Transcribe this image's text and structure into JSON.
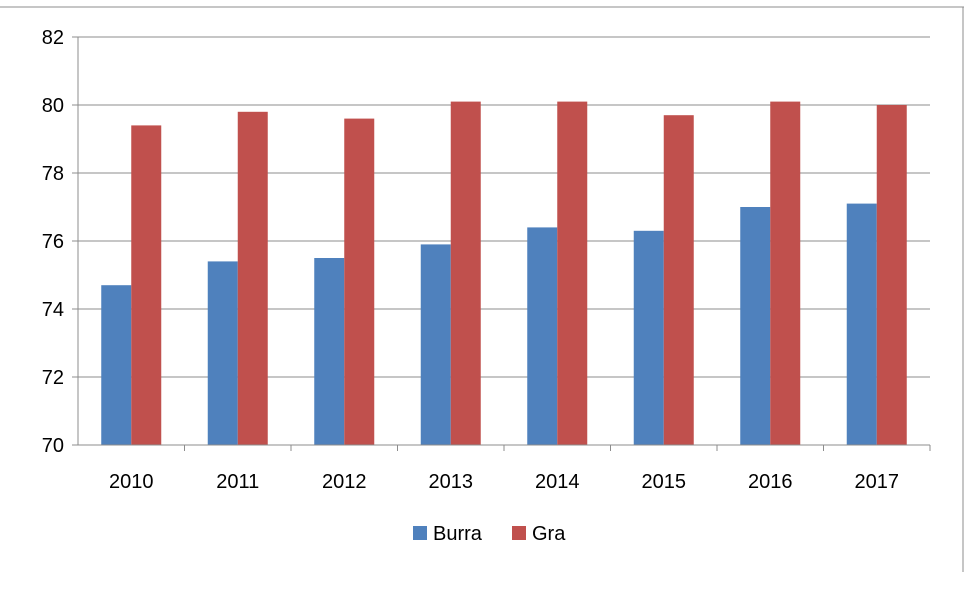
{
  "chart_data": {
    "type": "bar",
    "title": "",
    "xlabel": "",
    "ylabel": "",
    "categories": [
      "2010",
      "2011",
      "2012",
      "2013",
      "2014",
      "2015",
      "2016",
      "2017"
    ],
    "series": [
      {
        "name": "Burra",
        "color": "#4F81BD",
        "values": [
          74.7,
          75.4,
          75.5,
          75.9,
          76.4,
          76.3,
          77.0,
          77.1
        ]
      },
      {
        "name": "Gra",
        "color": "#C0504D",
        "values": [
          79.4,
          79.8,
          79.6,
          80.1,
          80.1,
          79.7,
          80.1,
          80.0
        ]
      }
    ],
    "ylim": [
      70,
      82
    ],
    "yticks": [
      "70",
      "72",
      "74",
      "76",
      "78",
      "80",
      "82"
    ],
    "grid": true,
    "legend_position": "bottom"
  }
}
